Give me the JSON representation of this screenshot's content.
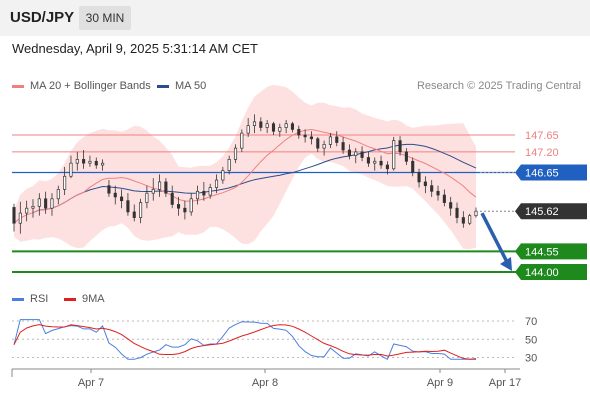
{
  "header": {
    "symbol": "USD/JPY",
    "timeframe": "30 MIN"
  },
  "timestamp": "Wednesday, April 9, 2025 5:31:14 AM CET",
  "legend": {
    "ma20": "MA 20 + Bollinger Bands",
    "ma50": "MA 50",
    "copyright": "Research © 2025 Trading Central"
  },
  "rsi_legend": {
    "rsi": "RSI",
    "ma": "9MA"
  },
  "colors": {
    "ma20": "#f08080",
    "ma50": "#2a4d8f",
    "bollinger_fill": "#fcd9d9",
    "candle": "#333333",
    "resistance": "#f08080",
    "pivot": "#2060c0",
    "support": "#1e8a1e",
    "current": "#333333",
    "arrow": "#2a5fb0",
    "rsi": "#4a7fe0",
    "rsi_ma": "#e02020"
  },
  "chart_data": {
    "type": "candlestick",
    "x_ticks": [
      "Apr 7",
      "Apr 8",
      "Apr 9",
      "Apr 17"
    ],
    "price_levels": [
      {
        "value": 147.65,
        "label": "147.65",
        "kind": "resistance"
      },
      {
        "value": 147.2,
        "label": "147.20",
        "kind": "resistance"
      },
      {
        "value": 146.65,
        "label": "146.65",
        "kind": "pivot"
      },
      {
        "value": 145.62,
        "label": "145.62",
        "kind": "current"
      },
      {
        "value": 144.55,
        "label": "144.55",
        "kind": "support"
      },
      {
        "value": 144.0,
        "label": "144.00",
        "kind": "support"
      }
    ],
    "forecast": {
      "from": 145.62,
      "to": 144.0
    },
    "ohlc": [
      [
        145.72,
        145.82,
        145.08,
        145.3
      ],
      [
        145.3,
        145.87,
        145.02,
        145.57
      ],
      [
        145.57,
        145.9,
        145.35,
        145.7
      ],
      [
        145.7,
        145.94,
        145.45,
        145.75
      ],
      [
        145.75,
        146.1,
        145.5,
        145.95
      ],
      [
        145.95,
        146.14,
        145.55,
        145.7
      ],
      [
        145.7,
        146.1,
        145.5,
        145.95
      ],
      [
        145.95,
        146.3,
        145.8,
        146.2
      ],
      [
        146.2,
        146.8,
        146.05,
        146.55
      ],
      [
        146.55,
        147.1,
        146.5,
        146.9
      ],
      [
        146.9,
        147.2,
        146.7,
        147.0
      ],
      [
        147.0,
        147.25,
        146.75,
        146.9
      ],
      [
        146.9,
        147.1,
        146.8,
        146.95
      ],
      [
        146.95,
        147.05,
        146.75,
        146.85
      ],
      [
        146.85,
        147.0,
        146.7,
        146.9
      ],
      [
        146.3,
        146.45,
        146.0,
        146.1
      ],
      [
        146.1,
        146.3,
        145.8,
        146.0
      ],
      [
        146.0,
        146.2,
        145.7,
        145.9
      ],
      [
        145.9,
        146.1,
        145.5,
        145.6
      ],
      [
        145.6,
        145.8,
        145.35,
        145.45
      ],
      [
        145.45,
        145.95,
        145.3,
        145.85
      ],
      [
        145.85,
        146.3,
        145.7,
        146.1
      ],
      [
        146.1,
        146.5,
        145.9,
        146.2
      ],
      [
        146.2,
        146.6,
        146.0,
        146.4
      ],
      [
        146.4,
        146.5,
        146.0,
        146.1
      ],
      [
        146.1,
        146.3,
        145.7,
        145.8
      ],
      [
        145.8,
        146.0,
        145.5,
        145.7
      ],
      [
        145.7,
        145.9,
        145.4,
        145.6
      ],
      [
        145.6,
        146.1,
        145.5,
        145.95
      ],
      [
        145.95,
        146.3,
        145.8,
        146.15
      ],
      [
        146.15,
        146.4,
        145.9,
        146.05
      ],
      [
        146.05,
        146.35,
        145.95,
        146.25
      ],
      [
        146.25,
        146.6,
        146.1,
        146.45
      ],
      [
        146.45,
        146.8,
        146.35,
        146.7
      ],
      [
        146.7,
        147.1,
        146.6,
        147.0
      ],
      [
        147.0,
        147.4,
        146.9,
        147.3
      ],
      [
        147.3,
        147.8,
        147.2,
        147.7
      ],
      [
        147.7,
        148.1,
        147.6,
        147.9
      ],
      [
        147.9,
        148.2,
        147.7,
        148.0
      ],
      [
        148.0,
        148.12,
        147.75,
        147.85
      ],
      [
        147.85,
        148.05,
        147.7,
        147.95
      ],
      [
        147.95,
        148.0,
        147.65,
        147.75
      ],
      [
        147.75,
        147.95,
        147.6,
        147.85
      ],
      [
        147.85,
        148.05,
        147.7,
        147.95
      ],
      [
        147.95,
        148.0,
        147.72,
        147.8
      ],
      [
        147.8,
        147.9,
        147.55,
        147.65
      ],
      [
        147.65,
        147.8,
        147.45,
        147.6
      ],
      [
        147.6,
        147.75,
        147.4,
        147.55
      ],
      [
        147.55,
        147.6,
        147.2,
        147.3
      ],
      [
        147.3,
        147.5,
        147.1,
        147.4
      ],
      [
        147.4,
        147.7,
        147.3,
        147.6
      ],
      [
        147.6,
        147.75,
        147.35,
        147.45
      ],
      [
        147.45,
        147.6,
        147.15,
        147.25
      ],
      [
        147.25,
        147.4,
        147.0,
        147.1
      ],
      [
        147.1,
        147.3,
        146.9,
        147.2
      ],
      [
        147.2,
        147.35,
        146.95,
        147.05
      ],
      [
        147.05,
        147.2,
        146.8,
        146.9
      ],
      [
        146.9,
        147.05,
        146.7,
        146.95
      ],
      [
        146.95,
        147.1,
        146.75,
        146.85
      ],
      [
        146.85,
        146.95,
        146.6,
        146.75
      ],
      [
        146.75,
        147.6,
        146.7,
        147.5
      ],
      [
        147.5,
        147.62,
        147.1,
        147.2
      ],
      [
        147.2,
        147.3,
        146.85,
        146.95
      ],
      [
        146.95,
        147.05,
        146.55,
        146.65
      ],
      [
        146.65,
        146.75,
        146.25,
        146.4
      ],
      [
        146.4,
        146.55,
        146.1,
        146.3
      ],
      [
        146.3,
        146.45,
        146.0,
        146.15
      ],
      [
        146.15,
        146.3,
        145.9,
        146.05
      ],
      [
        146.05,
        146.2,
        145.75,
        145.85
      ],
      [
        145.85,
        146.0,
        145.5,
        145.7
      ],
      [
        145.7,
        145.85,
        145.3,
        145.45
      ],
      [
        145.45,
        145.62,
        145.18,
        145.3
      ],
      [
        145.3,
        145.55,
        145.25,
        145.5
      ],
      [
        145.5,
        145.72,
        145.45,
        145.62
      ]
    ],
    "rsi_axis": [
      30,
      50,
      70
    ]
  }
}
